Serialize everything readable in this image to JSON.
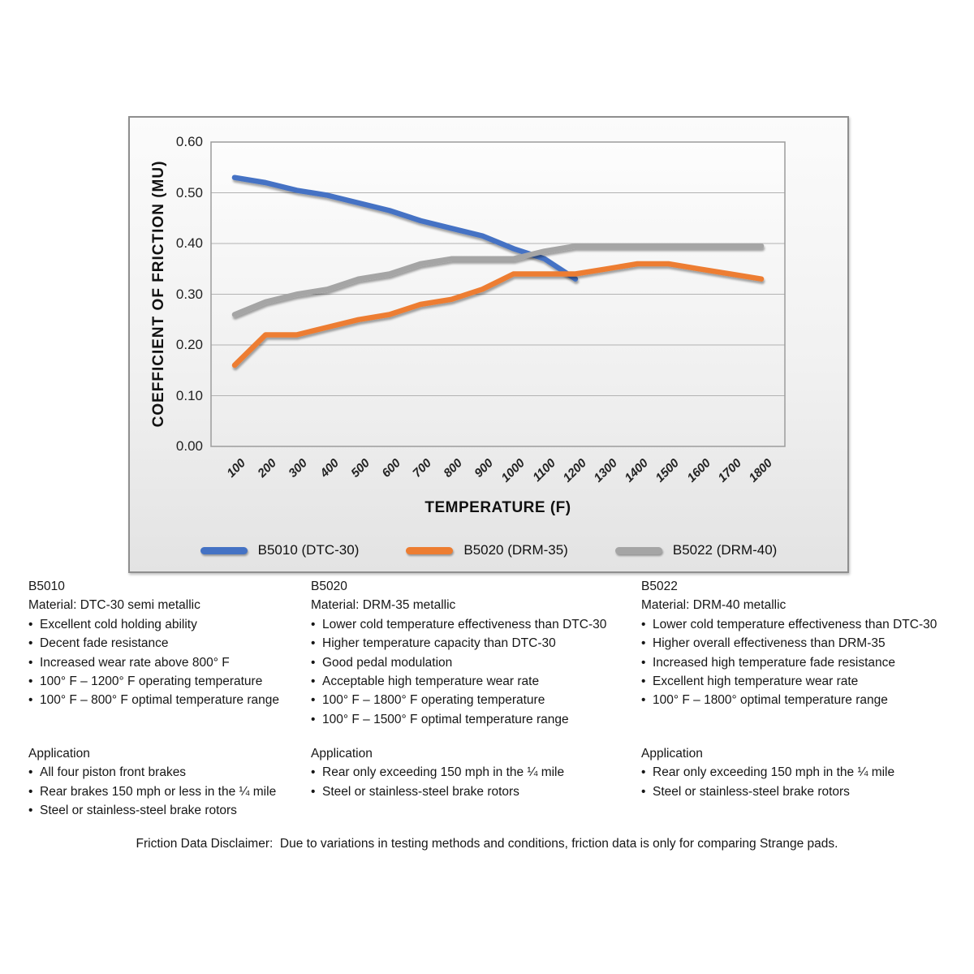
{
  "chart_data": {
    "type": "line",
    "title": "",
    "xlabel": "TEMPERATURE (F)",
    "ylabel": "COEFFICIENT OF FRICTION (MU)",
    "categories": [
      100,
      200,
      300,
      400,
      500,
      600,
      700,
      800,
      900,
      1000,
      1100,
      1200,
      1300,
      1400,
      1500,
      1600,
      1700,
      1800
    ],
    "ylim": [
      0.0,
      0.6
    ],
    "ytick_step": 0.1,
    "ytick_labels": [
      "0.00",
      "0.10",
      "0.20",
      "0.30",
      "0.40",
      "0.50",
      "0.60"
    ],
    "grid": "horizontal",
    "legend_position": "bottom",
    "series": [
      {
        "name": "B5010 (DTC-30)",
        "color": "#4472C4",
        "values": [
          0.53,
          0.52,
          0.505,
          0.495,
          0.48,
          0.465,
          0.445,
          0.43,
          0.415,
          0.39,
          0.37,
          0.33,
          null,
          null,
          null,
          null,
          null,
          null
        ]
      },
      {
        "name": "B5020 (DRM-35)",
        "color": "#ED7D31",
        "values": [
          0.16,
          0.22,
          0.22,
          0.235,
          0.25,
          0.26,
          0.28,
          0.29,
          0.31,
          0.34,
          0.34,
          0.34,
          0.35,
          0.36,
          0.36,
          0.35,
          0.34,
          0.33
        ]
      },
      {
        "name": "B5022 (DRM-40)",
        "color": "#A5A5A5",
        "values": [
          0.26,
          0.285,
          0.3,
          0.31,
          0.33,
          0.34,
          0.36,
          0.37,
          0.37,
          0.37,
          0.385,
          0.395,
          0.395,
          0.395,
          0.395,
          0.395,
          0.395,
          0.395
        ]
      }
    ]
  },
  "columns": [
    {
      "code": "B5010",
      "material": "Material: DTC-30 semi metallic",
      "bullets": [
        "Excellent cold holding ability",
        "Decent fade resistance",
        "Increased wear rate above 800° F",
        "100° F – 1200° F operating temperature",
        "100° F – 800° F optimal temperature range"
      ],
      "application_heading": "Application",
      "application_bullets": [
        "All four piston front brakes",
        "Rear brakes 150 mph or less in the ¼ mile",
        "Steel or stainless-steel brake rotors"
      ]
    },
    {
      "code": "B5020",
      "material": "Material: DRM-35 metallic",
      "bullets": [
        "Lower cold temperature effectiveness than DTC-30",
        "Higher temperature capacity than DTC-30",
        "Good pedal modulation",
        "Acceptable high temperature wear rate",
        "100° F – 1800° F operating temperature",
        "100° F – 1500° F optimal temperature range"
      ],
      "application_heading": "Application",
      "application_bullets": [
        "Rear only exceeding 150 mph in the ¼ mile",
        "Steel or stainless-steel brake rotors"
      ]
    },
    {
      "code": "B5022",
      "material": "Material: DRM-40 metallic",
      "bullets": [
        "Lower cold temperature effectiveness than DTC-30",
        "Higher overall effectiveness than DRM-35",
        "Increased high temperature fade resistance",
        "Excellent high temperature wear rate",
        "100° F – 1800° optimal temperature range"
      ],
      "application_heading": "Application",
      "application_bullets": [
        "Rear only exceeding 150 mph in the ¼ mile",
        "Steel or stainless-steel brake rotors"
      ]
    }
  ],
  "disclaimer": "Friction Data Disclaimer:  Due to variations in testing methods and conditions, friction data is only for comparing Strange pads."
}
